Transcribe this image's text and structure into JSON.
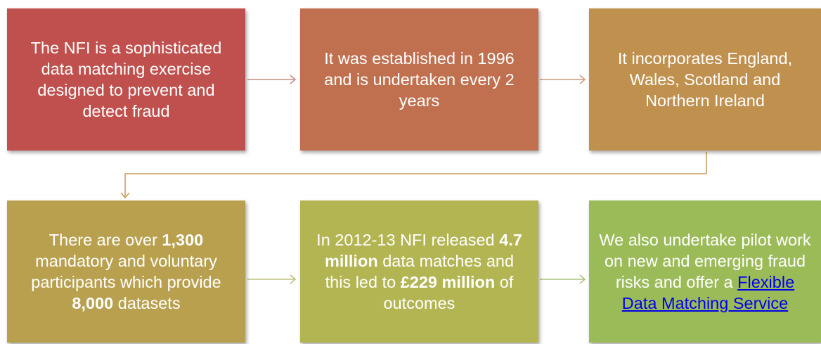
{
  "nodes": [
    {
      "color": "#c0504d",
      "runs": [
        {
          "text": "The NFI is a sophisticated data matching exercise designed to prevent and detect fraud"
        }
      ]
    },
    {
      "color": "#c0704f",
      "runs": [
        {
          "text": "It was established in 1996 and is undertaken every 2 years"
        }
      ]
    },
    {
      "color": "#c0904f",
      "runs": [
        {
          "text": "It incorporates England, Wales, Scotland and Northern Ireland"
        }
      ]
    },
    {
      "color": "#b9a04e",
      "runs": [
        {
          "text": "There are over "
        },
        {
          "text": "1,300",
          "bold": true
        },
        {
          "text": " mandatory and voluntary participants which provide "
        },
        {
          "text": "8,000",
          "bold": true
        },
        {
          "text": " datasets"
        }
      ]
    },
    {
      "color": "#b3b552",
      "runs": [
        {
          "text": "In 2012-13 NFI released "
        },
        {
          "text": "4.7 million",
          "bold": true
        },
        {
          "text": " data matches and this led to "
        },
        {
          "text": "£229 million",
          "bold": true
        },
        {
          "text": " of outcomes"
        }
      ]
    },
    {
      "color": "#9bbb59",
      "runs": [
        {
          "text": "We also undertake pilot work on new and emerging fraud risks and offer a "
        },
        {
          "text": "Flexible Data Matching Service",
          "link": true
        }
      ]
    }
  ]
}
